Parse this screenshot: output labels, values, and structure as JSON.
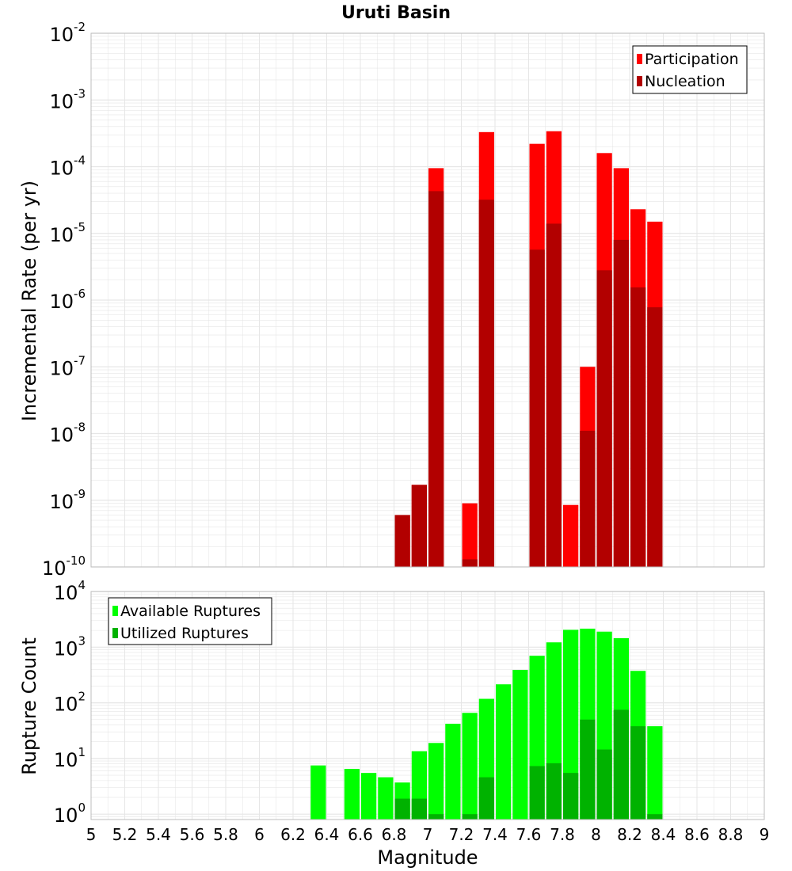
{
  "title": "Uruti Basin",
  "xlabel": "Magnitude",
  "colors": {
    "participation": "#ff0000",
    "nucleation": "#b20000",
    "available": "#00ff00",
    "utilized": "#00b200",
    "grid": "#e6e6e6",
    "frame": "#bdbdbd"
  },
  "x_ticks": [
    "5",
    "5.2",
    "5.4",
    "5.6",
    "5.8",
    "6",
    "6.2",
    "6.4",
    "6.6",
    "6.8",
    "7",
    "7.2",
    "7.4",
    "7.6",
    "7.8",
    "8",
    "8.2",
    "8.4",
    "8.6",
    "8.8",
    "9"
  ],
  "chart_data": [
    {
      "type": "bar",
      "scale": "log",
      "ylabel": "Incremental Rate (per yr)",
      "xlim": [
        5,
        9
      ],
      "ylim": [
        1e-10,
        0.01
      ],
      "y_tick_exponents": [
        "-2",
        "-3",
        "-4",
        "-5",
        "-6",
        "-7",
        "-8",
        "-9",
        "-10"
      ],
      "legend_position": "top-right",
      "series": [
        {
          "name": "Participation",
          "x": [
            6.85,
            6.95,
            7.05,
            7.25,
            7.35,
            7.65,
            7.75,
            7.85,
            7.95,
            8.05,
            8.15,
            8.25,
            8.35
          ],
          "values": [
            6e-10,
            1.7e-09,
            9.5e-05,
            9e-10,
            0.00033,
            0.00022,
            0.00034,
            8.5e-10,
            1e-07,
            0.00016,
            9.5e-05,
            2.3e-05,
            1.5e-05
          ]
        },
        {
          "name": "Nucleation",
          "x": [
            6.85,
            6.95,
            7.05,
            7.25,
            7.35,
            7.65,
            7.75,
            7.95,
            8.05,
            8.15,
            8.25,
            8.35
          ],
          "values": [
            6e-10,
            1.7e-09,
            4.3e-05,
            1.3e-10,
            3.2e-05,
            5.7e-06,
            1.4e-05,
            1.1e-08,
            2.8e-06,
            8e-06,
            1.55e-06,
            7.8e-07
          ]
        }
      ]
    },
    {
      "type": "bar",
      "scale": "log",
      "ylabel": "Rupture Count",
      "xlim": [
        5,
        9
      ],
      "ylim": [
        0.8,
        10000
      ],
      "y_tick_exponents": [
        "4",
        "3",
        "2",
        "1",
        "0"
      ],
      "legend_position": "top-left",
      "series": [
        {
          "name": "Available Ruptures",
          "x": [
            6.35,
            6.55,
            6.65,
            6.75,
            6.85,
            6.95,
            7.05,
            7.15,
            7.25,
            7.35,
            7.45,
            7.55,
            7.65,
            7.75,
            7.85,
            7.95,
            8.05,
            8.15,
            8.25,
            8.35
          ],
          "values": [
            7.5,
            6.5,
            5.5,
            4.6,
            3.7,
            13.5,
            19,
            42,
            66,
            118,
            215,
            390,
            700,
            1220,
            2050,
            2150,
            1900,
            1450,
            375,
            38
          ]
        },
        {
          "name": "Utilized Ruptures",
          "x": [
            6.85,
            6.95,
            7.05,
            7.25,
            7.35,
            7.65,
            7.75,
            7.85,
            7.95,
            8.05,
            8.15,
            8.25,
            8.35
          ],
          "values": [
            1.9,
            1.9,
            1,
            1,
            4.6,
            7.3,
            8.2,
            5.5,
            50,
            14.5,
            75,
            38,
            1
          ]
        }
      ]
    }
  ]
}
